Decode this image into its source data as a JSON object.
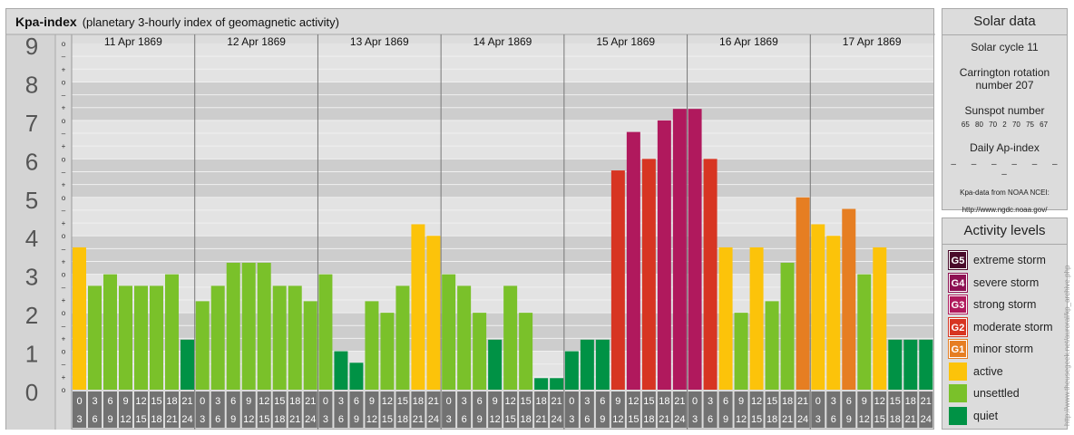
{
  "header": {
    "title": "Kpa-index",
    "subtitle": "(planetary 3-hourly index of geomagnetic activity)"
  },
  "chart_data": {
    "type": "bar",
    "y_tick_labels": [
      "0",
      "1",
      "2",
      "3",
      "4",
      "5",
      "6",
      "7",
      "8",
      "9"
    ],
    "minor_marks": [
      "o",
      "+",
      "–",
      "o",
      "+",
      "–",
      "o",
      "+",
      "–",
      "o",
      "+",
      "–",
      "o",
      "+",
      "–",
      "o",
      "+",
      "–",
      "o",
      "+",
      "–",
      "o",
      "+",
      "–",
      "o",
      "+",
      "–",
      "o"
    ],
    "ylim": [
      0,
      9
    ],
    "grid": true,
    "interval_starts": [
      "0",
      "3",
      "6",
      "9",
      "12",
      "15",
      "18",
      "21"
    ],
    "interval_ends": [
      "3",
      "6",
      "9",
      "12",
      "15",
      "18",
      "21",
      "24"
    ],
    "days": [
      {
        "date": "11 Apr 1869",
        "values": [
          3.7,
          2.7,
          3.0,
          2.7,
          2.7,
          2.7,
          3.0,
          1.3
        ]
      },
      {
        "date": "12 Apr 1869",
        "values": [
          2.3,
          2.7,
          3.3,
          3.3,
          3.3,
          2.7,
          2.7,
          2.3
        ]
      },
      {
        "date": "13 Apr 1869",
        "values": [
          3.0,
          1.0,
          0.7,
          2.3,
          2.0,
          2.7,
          4.3,
          4.0
        ]
      },
      {
        "date": "14 Apr 1869",
        "values": [
          3.0,
          2.7,
          2.0,
          1.3,
          2.7,
          2.0,
          0.3,
          0.3
        ]
      },
      {
        "date": "15 Apr 1869",
        "values": [
          1.0,
          1.3,
          1.3,
          5.7,
          6.7,
          6.0,
          7.0,
          7.3
        ]
      },
      {
        "date": "16 Apr 1869",
        "values": [
          7.3,
          6.0,
          3.7,
          2.0,
          3.7,
          2.3,
          3.3,
          5.0
        ]
      },
      {
        "date": "17 Apr 1869",
        "values": [
          4.3,
          4.0,
          4.7,
          3.0,
          3.7,
          1.3,
          1.3,
          1.3
        ]
      }
    ],
    "level_colors": {
      "quiet": "#009245",
      "unsettled": "#7ac12a",
      "active": "#fcc30a",
      "G1": "#e67e22",
      "G2": "#d73522",
      "G3": "#b0195d",
      "G4": "#8d1052",
      "G5": "#4a0a2a"
    }
  },
  "solar": {
    "title": "Solar data",
    "cycle": "Solar cycle 11",
    "carrington_line1": "Carrington rotation",
    "carrington_line2": "number 207",
    "sunspot_title": "Sunspot number",
    "sunspot_values": "65 80 70 2 70 75 67",
    "ap_title": "Daily Ap-index",
    "ap_values": "– – – – – – –",
    "source_line1": "Kpa-data from NOAA NCEI:",
    "source_line2": "http://www.ngdc.noaa.gov/"
  },
  "activity_levels": {
    "title": "Activity levels",
    "items": [
      {
        "code": "G5",
        "label": "extreme storm",
        "color": "#4a0a2a"
      },
      {
        "code": "G4",
        "label": "severe storm",
        "color": "#8d1052"
      },
      {
        "code": "G3",
        "label": "strong storm",
        "color": "#b0195d"
      },
      {
        "code": "G2",
        "label": "moderate storm",
        "color": "#d73522"
      },
      {
        "code": "G1",
        "label": "minor storm",
        "color": "#e67e22"
      },
      {
        "code": "",
        "label": "active",
        "color": "#fcc30a"
      },
      {
        "code": "",
        "label": "unsettled",
        "color": "#7ac12a"
      },
      {
        "code": "",
        "label": "quiet",
        "color": "#009245"
      }
    ]
  },
  "watermark": "http://www.theusegeek.net/auroral/kp_archive.php"
}
